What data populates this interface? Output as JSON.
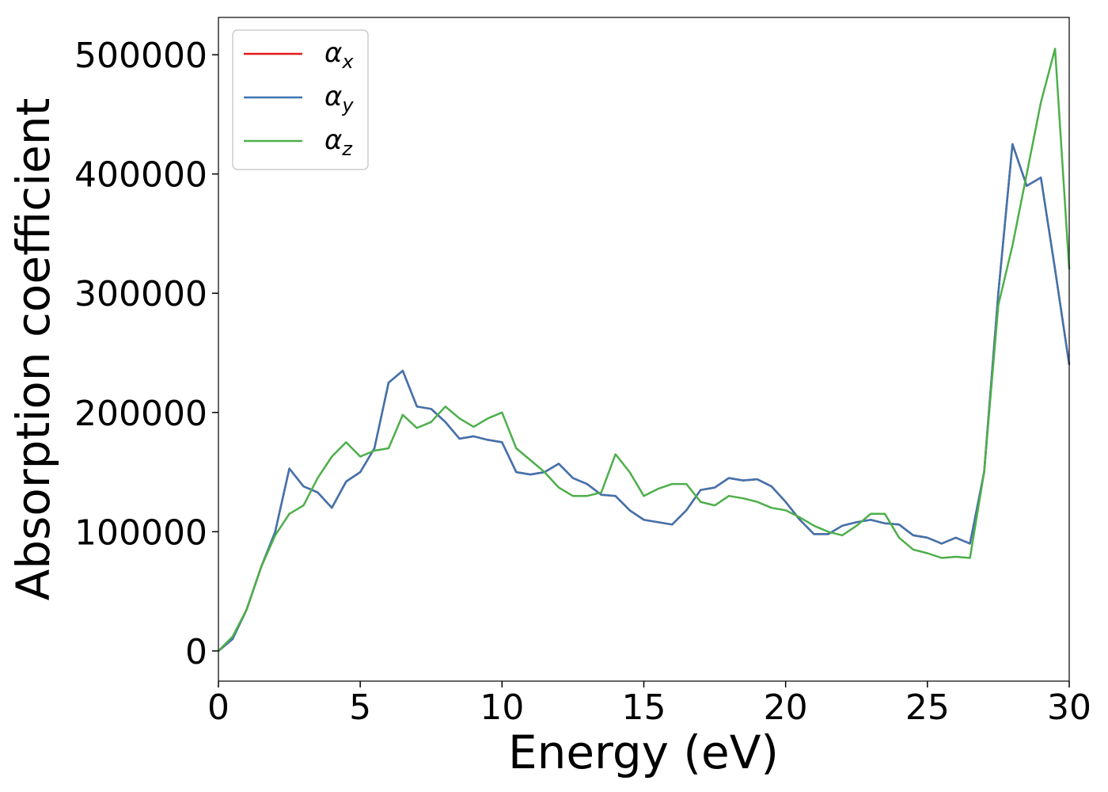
{
  "chart_data": {
    "type": "line",
    "xlabel": "Energy (eV)",
    "ylabel": "Absorption coefficient",
    "x": [
      0,
      0.5,
      1,
      1.5,
      2,
      2.5,
      3,
      3.5,
      4,
      4.5,
      5,
      5.5,
      6,
      6.5,
      7,
      7.5,
      8,
      8.5,
      9,
      9.5,
      10,
      10.5,
      11,
      11.5,
      12,
      12.5,
      13,
      13.5,
      14,
      14.5,
      15,
      15.5,
      16,
      16.5,
      17,
      17.5,
      18,
      18.5,
      19,
      19.5,
      20,
      20.5,
      21,
      21.5,
      22,
      22.5,
      23,
      23.5,
      24,
      24.5,
      25,
      25.5,
      26,
      26.5,
      27,
      27.5,
      28,
      28.5,
      29,
      29.5,
      30
    ],
    "series": [
      {
        "name": "αx",
        "color": "#e41a1c",
        "values": [
          0,
          10000,
          35000,
          70000,
          100000,
          153000,
          138000,
          133000,
          120000,
          142000,
          150000,
          170000,
          225000,
          235000,
          205000,
          203000,
          192000,
          178000,
          180000,
          177000,
          175000,
          150000,
          148000,
          150000,
          157000,
          145000,
          140000,
          131000,
          130000,
          118000,
          110000,
          108000,
          106000,
          118000,
          135000,
          137000,
          145000,
          143000,
          144000,
          138000,
          125000,
          110000,
          98000,
          98000,
          105000,
          108000,
          110000,
          107000,
          106000,
          97000,
          95000,
          90000,
          95000,
          90000,
          150000,
          300000,
          425000,
          390000,
          397000,
          320000,
          240000
        ]
      },
      {
        "name": "αy",
        "color": "#3d74b0",
        "values": [
          0,
          10000,
          35000,
          70000,
          100000,
          153000,
          138000,
          133000,
          120000,
          142000,
          150000,
          170000,
          225000,
          235000,
          205000,
          203000,
          192000,
          178000,
          180000,
          177000,
          175000,
          150000,
          148000,
          150000,
          157000,
          145000,
          140000,
          131000,
          130000,
          118000,
          110000,
          108000,
          106000,
          118000,
          135000,
          137000,
          145000,
          143000,
          144000,
          138000,
          125000,
          110000,
          98000,
          98000,
          105000,
          108000,
          110000,
          107000,
          106000,
          97000,
          95000,
          90000,
          95000,
          90000,
          150000,
          300000,
          425000,
          390000,
          397000,
          320000,
          240000
        ]
      },
      {
        "name": "αz",
        "color": "#4daf4a",
        "values": [
          0,
          12000,
          35000,
          70000,
          97000,
          115000,
          122000,
          145000,
          163000,
          175000,
          163000,
          168000,
          170000,
          198000,
          187000,
          192000,
          205000,
          195000,
          188000,
          195000,
          200000,
          170000,
          160000,
          150000,
          137000,
          130000,
          130000,
          133000,
          165000,
          150000,
          130000,
          136000,
          140000,
          140000,
          125000,
          122000,
          130000,
          128000,
          125000,
          120000,
          118000,
          112000,
          105000,
          100000,
          97000,
          105000,
          115000,
          115000,
          95000,
          85000,
          82000,
          78000,
          79000,
          78000,
          150000,
          290000,
          340000,
          400000,
          460000,
          505000,
          320000
        ]
      }
    ],
    "xlim": [
      0,
      30
    ],
    "xticks": [
      0,
      5,
      10,
      15,
      20,
      25,
      30
    ],
    "ylim": [
      -25300,
      531300
    ],
    "yticks": [
      0,
      100000,
      200000,
      300000,
      400000,
      500000
    ],
    "legend": "upper left"
  }
}
